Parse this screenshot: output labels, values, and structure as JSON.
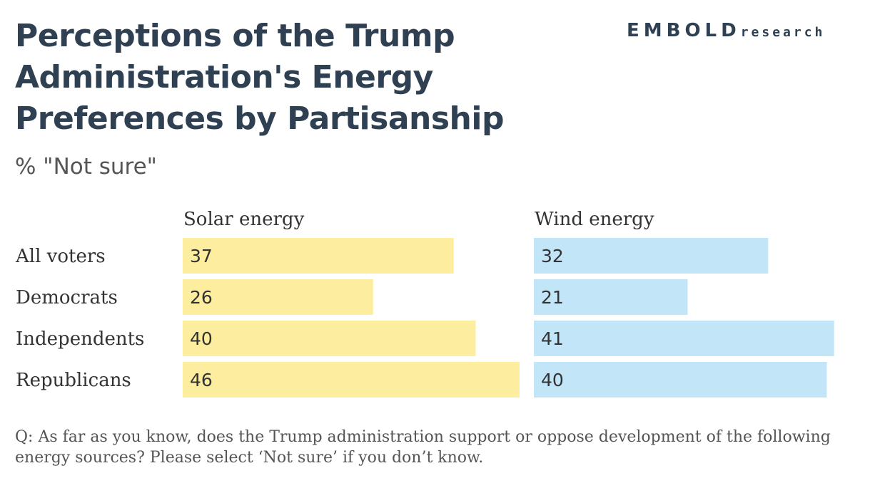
{
  "header": {
    "title": "Perceptions of the Trump Administration's Energy Preferences by Partisanship",
    "subtitle": "% \"Not sure\"",
    "brand_main": "EMBOLD",
    "brand_sub": "research"
  },
  "footnote": "Q: As far as you know, does the Trump administration support or oppose development of the following energy sources? Please select ‘Not sure’ if you don’t know.",
  "chart_data": {
    "type": "bar",
    "orientation": "horizontal",
    "categories": [
      "All voters",
      "Democrats",
      "Independents",
      "Republicans"
    ],
    "series": [
      {
        "name": "Solar energy",
        "values": [
          37,
          26,
          40,
          46
        ],
        "color": "#fcee9e"
      },
      {
        "name": "Wind energy",
        "values": [
          32,
          21,
          41,
          40
        ],
        "color": "#c2e6f8"
      }
    ],
    "title": "Perceptions of the Trump Administration's Energy Preferences by Partisanship",
    "ylabel": "% \"Not sure\"",
    "xlim": [
      0,
      46
    ],
    "grid": false,
    "legend": "none"
  },
  "colors": {
    "title": "#2e4052",
    "text": "#333333",
    "value_text": "#333333"
  }
}
